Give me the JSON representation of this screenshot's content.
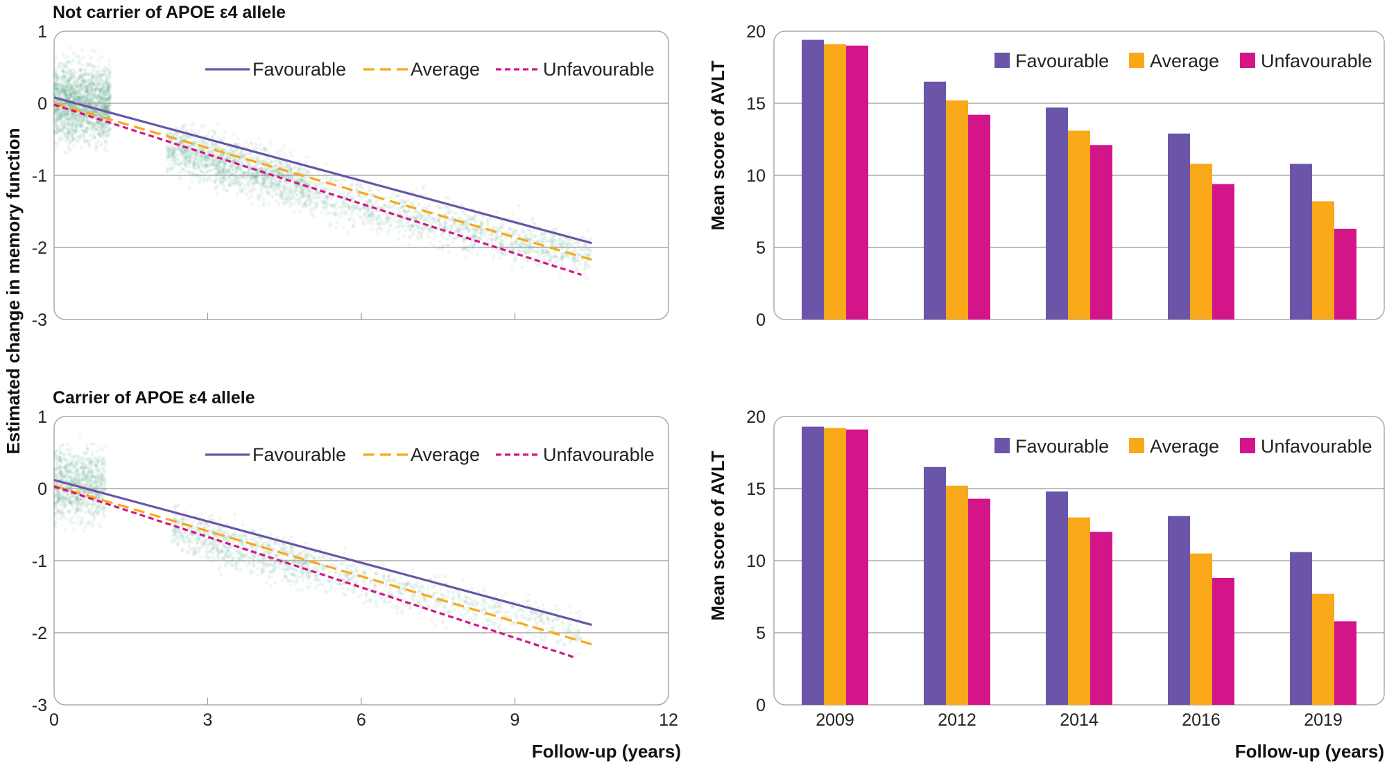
{
  "colors": {
    "favourable": "#6a55a8",
    "average": "#f9a81a",
    "unfavourable": "#d4158a",
    "scatter": "#5aa882",
    "grid": "#999999",
    "frame": "#aaaaaa"
  },
  "shared": {
    "line_xlabel": "Follow-up (years)",
    "bar_xlabel": "Follow-up (years)",
    "line_ylabel": "Estimated change in memory function",
    "bar_ylabel": "Mean score of AVLT"
  },
  "chart_data": [
    {
      "type": "scatter",
      "panel": "top-left",
      "title": "Not carrier of APOE ε4 allele",
      "xlabel": "",
      "ylabel": "Estimated change in memory function",
      "xlim": [
        0,
        12
      ],
      "ylim": [
        -3,
        1
      ],
      "xticks": [
        0,
        3,
        6,
        9,
        12
      ],
      "show_xtick_labels": false,
      "yticks": [
        1,
        0,
        -1,
        -2,
        -3
      ],
      "grid": true,
      "legend_position": "top-right",
      "scatter_clusters": [
        {
          "x": [
            0,
            1.1
          ],
          "y_center": 0,
          "y_spread": 0.9,
          "weight": 1800
        },
        {
          "x": [
            2.2,
            5
          ],
          "y_center_start": -0.6,
          "y_slope": -0.2,
          "y_spread": 0.6,
          "weight": 1500
        },
        {
          "x": [
            5,
            10.5
          ],
          "y_center_start": -1.25,
          "y_slope": -0.16,
          "y_spread": 0.55,
          "weight": 1300
        }
      ],
      "series": [
        {
          "name": "Favourable",
          "style": "solid",
          "x": [
            0,
            10.5
          ],
          "y": [
            0.08,
            -1.94
          ]
        },
        {
          "name": "Average",
          "style": "long-dash",
          "x": [
            0,
            10.5
          ],
          "y": [
            0.0,
            -2.17
          ]
        },
        {
          "name": "Unfavourable",
          "style": "short-dash",
          "x": [
            0,
            10.3
          ],
          "y": [
            -0.02,
            -2.38
          ]
        }
      ]
    },
    {
      "type": "bar",
      "panel": "top-right",
      "title": "",
      "xlabel": "",
      "ylabel": "Mean score of AVLT",
      "categories": [
        "2009",
        "2012",
        "2014",
        "2016",
        "2019"
      ],
      "show_category_labels": false,
      "ylim": [
        0,
        20
      ],
      "yticks": [
        20,
        15,
        10,
        5,
        0
      ],
      "grid": true,
      "legend_position": "top-right",
      "series": [
        {
          "name": "Favourable",
          "values": [
            19.4,
            16.5,
            14.7,
            12.9,
            10.8
          ]
        },
        {
          "name": "Average",
          "values": [
            19.1,
            15.2,
            13.1,
            10.8,
            8.2
          ]
        },
        {
          "name": "Unfavourable",
          "values": [
            19.0,
            14.2,
            12.1,
            9.4,
            6.3
          ]
        }
      ]
    },
    {
      "type": "scatter",
      "panel": "bottom-left",
      "title": "Carrier of APOE ε4 allele",
      "xlabel": "Follow-up (years)",
      "ylabel": "Estimated change in memory function",
      "xlim": [
        0,
        12
      ],
      "ylim": [
        -3,
        1
      ],
      "xticks": [
        0,
        3,
        6,
        9,
        12
      ],
      "show_xtick_labels": true,
      "yticks": [
        1,
        0,
        -1,
        -2,
        -3
      ],
      "grid": true,
      "legend_position": "top-right",
      "scatter_clusters": [
        {
          "x": [
            0,
            1.0
          ],
          "y_center": 0.05,
          "y_spread": 0.85,
          "weight": 900
        },
        {
          "x": [
            2.3,
            5
          ],
          "y_center_start": -0.55,
          "y_slope": -0.2,
          "y_spread": 0.55,
          "weight": 800
        },
        {
          "x": [
            5,
            10.3
          ],
          "y_center_start": -1.1,
          "y_slope": -0.17,
          "y_spread": 0.5,
          "weight": 700
        }
      ],
      "series": [
        {
          "name": "Favourable",
          "style": "solid",
          "x": [
            0,
            10.5
          ],
          "y": [
            0.12,
            -1.89
          ]
        },
        {
          "name": "Average",
          "style": "long-dash",
          "x": [
            0,
            10.5
          ],
          "y": [
            0.04,
            -2.16
          ]
        },
        {
          "name": "Unfavourable",
          "style": "short-dash",
          "x": [
            0,
            10.2
          ],
          "y": [
            0.03,
            -2.35
          ]
        }
      ]
    },
    {
      "type": "bar",
      "panel": "bottom-right",
      "title": "",
      "xlabel": "Follow-up (years)",
      "ylabel": "Mean score of AVLT",
      "categories": [
        "2009",
        "2012",
        "2014",
        "2016",
        "2019"
      ],
      "show_category_labels": true,
      "ylim": [
        0,
        20
      ],
      "yticks": [
        20,
        15,
        10,
        5,
        0
      ],
      "grid": true,
      "legend_position": "top-right",
      "series": [
        {
          "name": "Favourable",
          "values": [
            19.3,
            16.5,
            14.8,
            13.1,
            10.6
          ]
        },
        {
          "name": "Average",
          "values": [
            19.2,
            15.2,
            13.0,
            10.5,
            7.7
          ]
        },
        {
          "name": "Unfavourable",
          "values": [
            19.1,
            14.3,
            12.0,
            8.8,
            5.8
          ]
        }
      ]
    }
  ]
}
